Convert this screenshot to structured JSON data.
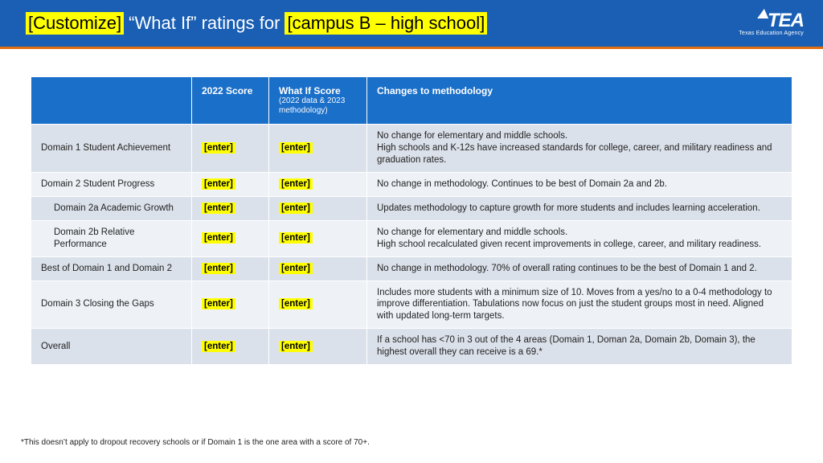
{
  "header": {
    "title_prefix": "[Customize]",
    "title_mid": "“What If” ratings for",
    "title_suffix": "[campus B – high school]",
    "logo_main": "TEA",
    "logo_sub": "Texas Education Agency"
  },
  "table": {
    "columns": {
      "domain": "",
      "score": "2022 Score",
      "whatif": "What If Score",
      "whatif_sub": "(2022 data & 2023 methodology)",
      "changes": "Changes to methodology"
    },
    "placeholder": "[enter]",
    "rows": [
      {
        "label": "Domain 1 Student Achievement",
        "indent": false,
        "changes": "No change for elementary and middle schools.\nHigh schools and K-12s have increased standards for college, career, and military readiness and graduation rates."
      },
      {
        "label": "Domain 2 Student Progress",
        "indent": false,
        "changes": "No change in methodology.  Continues to be best of Domain 2a and 2b."
      },
      {
        "label": "Domain 2a Academic Growth",
        "indent": true,
        "changes": "Updates methodology to capture growth for more students and includes learning acceleration."
      },
      {
        "label": "Domain 2b Relative Performance",
        "indent": true,
        "changes": "No change for elementary and middle schools.\nHigh school recalculated given recent improvements in college, career, and military readiness."
      },
      {
        "label": "Best of Domain 1 and Domain 2",
        "indent": false,
        "changes": "No change in methodology.  70% of overall rating continues to be the best of Domain 1 and 2."
      },
      {
        "label": "Domain 3 Closing the Gaps",
        "indent": false,
        "changes": "Includes more students with a minimum size of 10. Moves from a yes/no to a 0-4 methodology to improve differentiation. Tabulations now focus on just the student groups most in need. Aligned with updated long-term targets."
      },
      {
        "label": "Overall",
        "indent": false,
        "changes": "If a school has <70 in 3 out of the 4 areas (Domain 1, Doman 2a, Domain 2b, Domain 3), the highest overall they can receive is a 69.*"
      }
    ]
  },
  "footnote": "*This doesn’t apply to dropout recovery schools or if Domain 1 is the one area with a score of 70+.",
  "colors": {
    "header_bg": "#1a5fb4",
    "table_header_bg": "#1a6fc9",
    "accent": "#e26d0f",
    "highlight": "#ffff00",
    "row_odd": "#dbe1ea",
    "row_even": "#eef2f7"
  }
}
